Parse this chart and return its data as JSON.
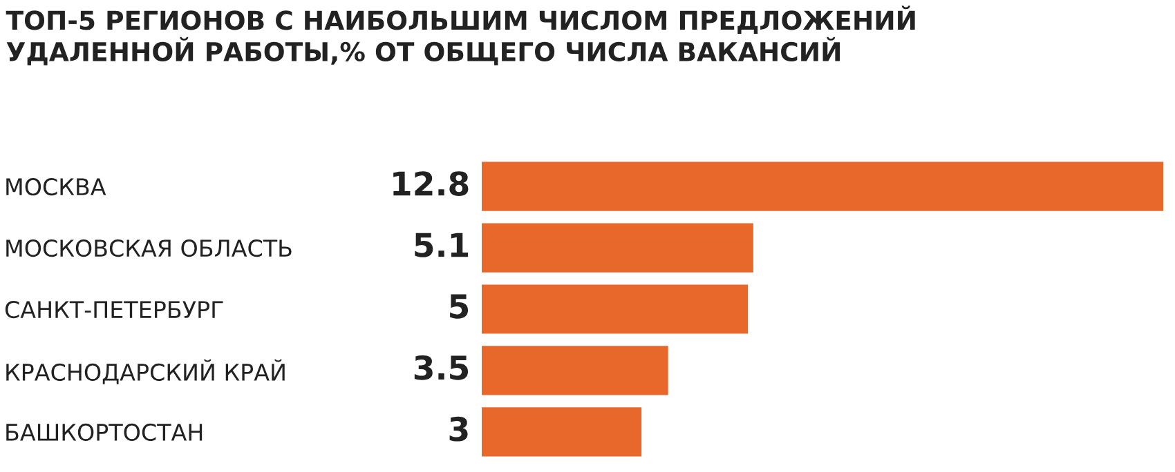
{
  "chart_data": {
    "type": "bar",
    "orientation": "horizontal",
    "title": "ТОП-5 РЕГИОНОВ С НАИБОЛЬШИМ ЧИСЛОМ ПРЕДЛОЖЕНИЙ\nУДАЛЕННОЙ РАБОТЫ,% ОТ ОБЩЕГО ЧИСЛА ВАКАНСИЙ",
    "categories": [
      "МОСКВА",
      "МОСКОВСКАЯ ОБЛАСТЬ",
      "САНКТ-ПЕТЕРБУРГ",
      "КРАСНОДАРСКИЙ КРАЙ",
      "БАШКОРТОСТАН"
    ],
    "values": [
      12.8,
      5.1,
      5,
      3.5,
      3
    ],
    "color": "#e8672a",
    "data_labels": true,
    "grid": false,
    "legend": false
  }
}
